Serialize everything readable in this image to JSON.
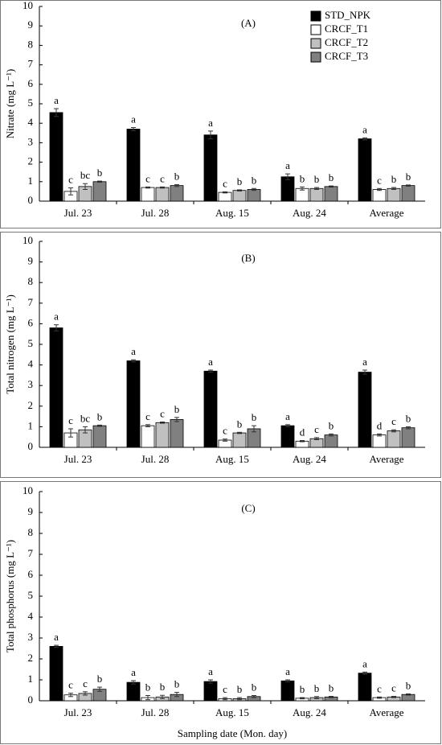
{
  "chart_data": [
    {
      "type": "bar",
      "annotation": "(A)",
      "ylabel": "Nitrate  (mg L⁻¹)",
      "categories": [
        "Jul. 23",
        "Jul. 28",
        "Aug. 15",
        "Aug. 24",
        "Average"
      ],
      "ylim": [
        0,
        10
      ],
      "yticks": [
        0,
        1,
        2,
        3,
        4,
        5,
        6,
        7,
        8,
        9,
        10
      ],
      "legend": "upper right",
      "series": [
        {
          "name": "STD_NPK",
          "color": "#000000",
          "values": [
            4.55,
            3.7,
            3.4,
            1.25,
            3.2
          ],
          "errors": [
            0.2,
            0.08,
            0.2,
            0.15,
            0.05
          ],
          "letters": [
            "a",
            "a",
            "a",
            "a",
            "a"
          ]
        },
        {
          "name": "CRCF_T1",
          "color": "#ffffff",
          "values": [
            0.5,
            0.7,
            0.45,
            0.65,
            0.6
          ],
          "errors": [
            0.18,
            0.03,
            0.03,
            0.08,
            0.05
          ],
          "letters": [
            "c",
            "c",
            "c",
            "b",
            "c"
          ]
        },
        {
          "name": "CRCF_T2",
          "color": "#c0c0c0",
          "values": [
            0.75,
            0.7,
            0.55,
            0.65,
            0.65
          ],
          "errors": [
            0.15,
            0.03,
            0.03,
            0.05,
            0.05
          ],
          "letters": [
            "bc",
            "c",
            "b",
            "b",
            "b"
          ]
        },
        {
          "name": "CRCF_T3",
          "color": "#808080",
          "values": [
            1.0,
            0.8,
            0.6,
            0.75,
            0.8
          ],
          "errors": [
            0.03,
            0.05,
            0.05,
            0.03,
            0.03
          ],
          "letters": [
            "b",
            "b",
            "b",
            "b",
            "b"
          ]
        }
      ]
    },
    {
      "type": "bar",
      "annotation": "(B)",
      "ylabel": "Total nitrogen  (mg L⁻¹)",
      "categories": [
        "Jul. 23",
        "Jul. 28",
        "Aug. 15",
        "Aug. 24",
        "Average"
      ],
      "ylim": [
        0,
        10
      ],
      "yticks": [
        0,
        1,
        2,
        3,
        4,
        5,
        6,
        7,
        8,
        9,
        10
      ],
      "series": [
        {
          "color": "#000000",
          "values": [
            5.8,
            4.2,
            3.7,
            1.05,
            3.65
          ],
          "errors": [
            0.15,
            0.05,
            0.05,
            0.05,
            0.1
          ],
          "letters": [
            "a",
            "a",
            "a",
            "a",
            "a"
          ]
        },
        {
          "color": "#ffffff",
          "values": [
            0.7,
            1.05,
            0.35,
            0.3,
            0.6
          ],
          "errors": [
            0.2,
            0.05,
            0.05,
            0.03,
            0.05
          ],
          "letters": [
            "c",
            "c",
            "c",
            "d",
            "d"
          ]
        },
        {
          "color": "#c0c0c0",
          "values": [
            0.85,
            1.2,
            0.7,
            0.42,
            0.8
          ],
          "errors": [
            0.15,
            0.03,
            0.03,
            0.05,
            0.05
          ],
          "letters": [
            "bc",
            "c",
            "b",
            "c",
            "c"
          ]
        },
        {
          "color": "#808080",
          "values": [
            1.05,
            1.35,
            0.9,
            0.6,
            0.95
          ],
          "errors": [
            0.03,
            0.1,
            0.15,
            0.05,
            0.05
          ],
          "letters": [
            "b",
            "b",
            "b",
            "b",
            "b"
          ]
        }
      ]
    },
    {
      "type": "bar",
      "annotation": "(C)",
      "ylabel": "Total phosphorus  (mg L⁻¹)",
      "xlabel": "Sampling date (Mon. day)",
      "categories": [
        "Jul. 23",
        "Jul. 28",
        "Aug. 15",
        "Aug. 24",
        "Average"
      ],
      "ylim": [
        0,
        10
      ],
      "yticks": [
        0,
        1,
        2,
        3,
        4,
        5,
        6,
        7,
        8,
        9,
        10
      ],
      "series": [
        {
          "color": "#000000",
          "values": [
            2.6,
            0.88,
            0.92,
            0.95,
            1.32
          ],
          "errors": [
            0.05,
            0.08,
            0.08,
            0.05,
            0.05
          ],
          "letters": [
            "a",
            "a",
            "a",
            "a",
            "a"
          ]
        },
        {
          "color": "#ffffff",
          "values": [
            0.28,
            0.15,
            0.1,
            0.12,
            0.15
          ],
          "errors": [
            0.08,
            0.1,
            0.05,
            0.03,
            0.03
          ],
          "letters": [
            "c",
            "b",
            "c",
            "b",
            "c"
          ]
        },
        {
          "color": "#c0c0c0",
          "values": [
            0.35,
            0.18,
            0.1,
            0.15,
            0.18
          ],
          "errors": [
            0.08,
            0.08,
            0.05,
            0.05,
            0.03
          ],
          "letters": [
            "c",
            "b",
            "b",
            "b",
            "c"
          ]
        },
        {
          "color": "#808080",
          "values": [
            0.55,
            0.3,
            0.2,
            0.18,
            0.3
          ],
          "errors": [
            0.1,
            0.1,
            0.05,
            0.03,
            0.03
          ],
          "letters": [
            "b",
            "b",
            "b",
            "b",
            "b"
          ]
        }
      ]
    }
  ]
}
